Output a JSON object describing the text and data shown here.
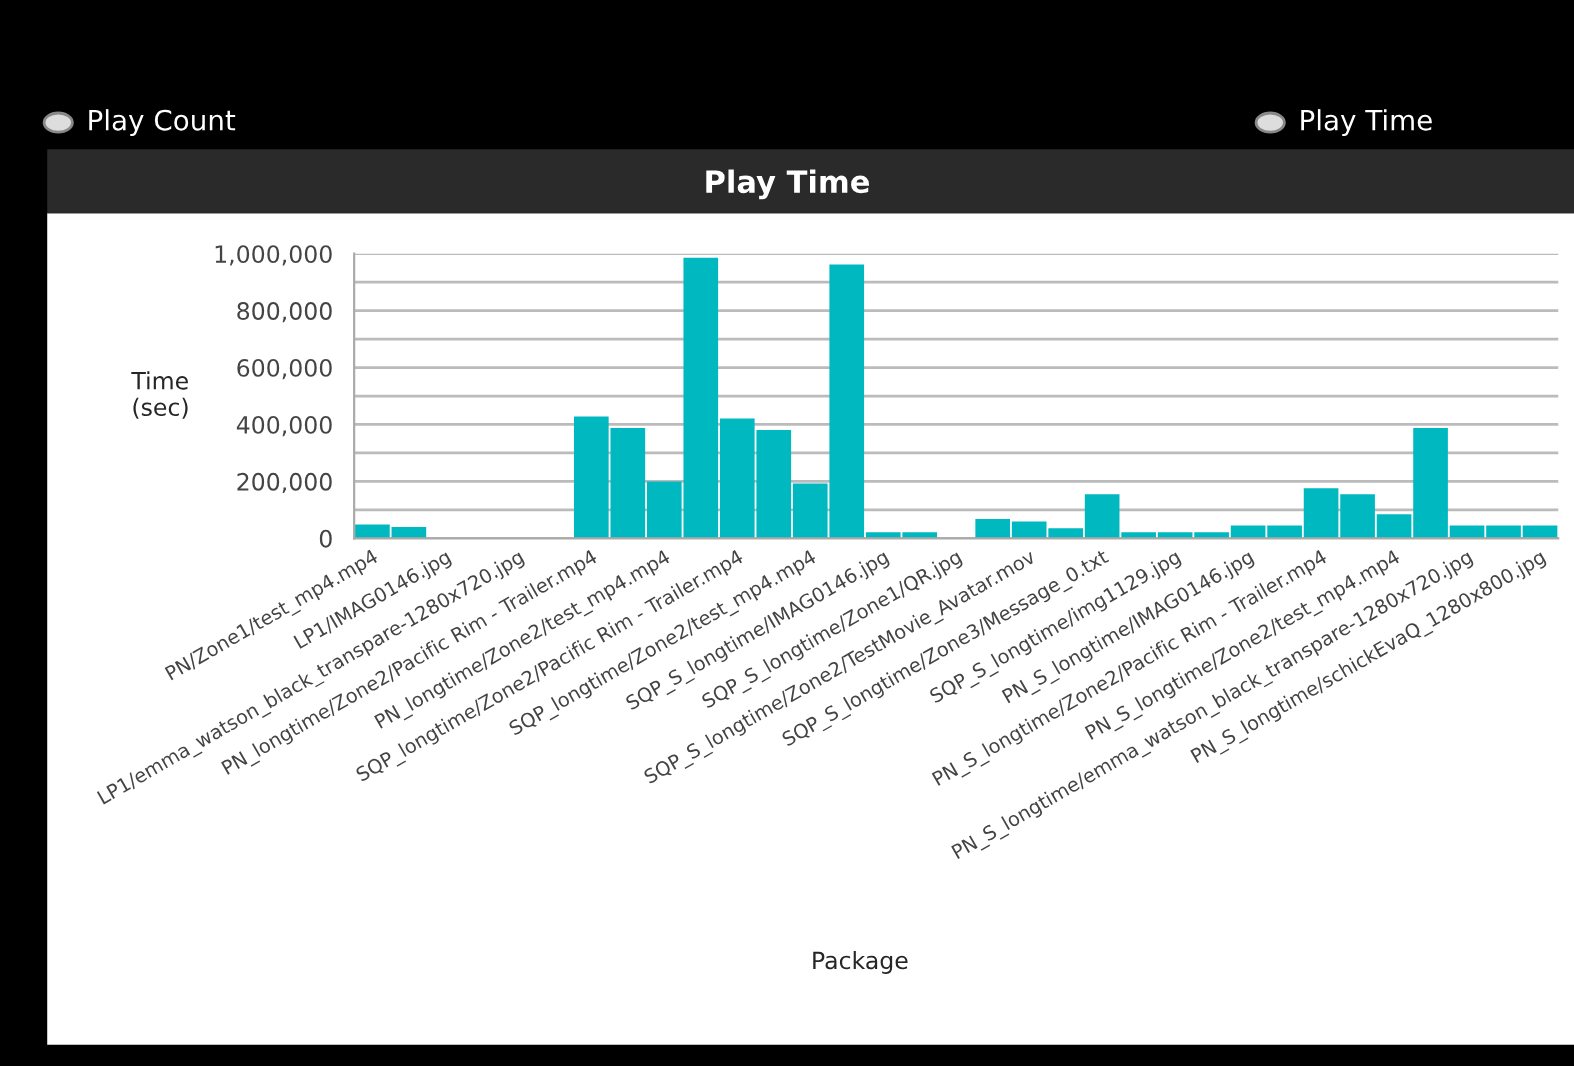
{
  "chart_data": {
    "type": "bar",
    "title": "Play Time",
    "xlabel": "Package",
    "ylabel": "Time\n(sec)",
    "annotations": [
      "Play Count",
      "Play Time"
    ],
    "categories": [
      "PN/Zone1/test_mp4.mp4",
      null,
      "LP1/IMAG0146.jpg",
      null,
      "LP1/emma_watson_black_transpare-1280x720.jpg",
      null,
      "PN_longtime/Zone2/Pacific Rim - Trailer.mp4",
      null,
      "PN_longtime/Zone2/test_mp4.mp4",
      null,
      "SQP_longtime/Zone2/Pacific Rim - Trailer.mp4",
      null,
      "SQP_longtime/Zone2/test_mp4.mp4",
      null,
      "SQP_S_longtime/IMAG0146.jpg",
      null,
      "SQP_S_longtime/Zone1/QR.jpg",
      null,
      "SQP_S_longtime/Zone2/TestMovie_Avatar.mov",
      null,
      "SQP_S_longtime/Zone3/Message_0.txt",
      null,
      "SQP_S_longtime/img1129.jpg",
      null,
      "PN_S_longtime/IMAG0146.jpg",
      null,
      "PN_S_longtime/Zone2/Pacific Rim - Trailer.mp4",
      null,
      "PN_S_longtime/Zone2/test_mp4.mp4",
      null,
      "PN_S_longtime/emma_watson_black_transpare-1280x720.jpg",
      null,
      "PN_S_longtime/schickEvaQ_1280x800.jpg"
    ],
    "values": [
      49000,
      40000,
      0,
      0,
      0,
      0,
      428000,
      388000,
      200000,
      986000,
      421000,
      381000,
      193000,
      962000,
      21000,
      21000,
      0,
      68000,
      59000,
      35000,
      155000,
      21000,
      21000,
      21000,
      45000,
      45000,
      176000,
      155000,
      85000,
      388000,
      45000,
      45000,
      45000
    ],
    "color": "#00b8c0",
    "ylim": [
      0,
      1000000
    ],
    "yticks": [
      {
        "value": 0,
        "label": "0"
      },
      {
        "value": 100000,
        "label": null
      },
      {
        "value": 200000,
        "label": "200,000"
      },
      {
        "value": 300000,
        "label": null
      },
      {
        "value": 400000,
        "label": "400,000"
      },
      {
        "value": 500000,
        "label": null
      },
      {
        "value": 600000,
        "label": "600,000"
      },
      {
        "value": 700000,
        "label": null
      },
      {
        "value": 800000,
        "label": "800,000"
      },
      {
        "value": 900000,
        "label": null
      },
      {
        "value": 1000000,
        "label": "1,000,000"
      }
    ],
    "grid": "y",
    "legend": false
  }
}
